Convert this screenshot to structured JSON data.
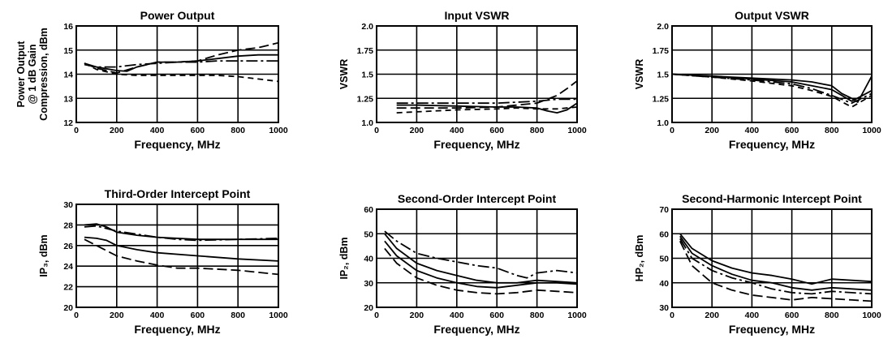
{
  "chart_data": [
    {
      "type": "line",
      "title": "Power Output",
      "xlabel": "Frequency, MHz",
      "ylabel_lines": [
        "Power Output",
        "@ 1 dB Gain",
        "Compression, dBm"
      ],
      "xlim": [
        0,
        1000
      ],
      "ylim": [
        12,
        16
      ],
      "xticks": [
        "0",
        "200",
        "400",
        "600",
        "800",
        "1000"
      ],
      "yticks": [
        "12",
        "13",
        "14",
        "15",
        "16"
      ],
      "series": [
        {
          "style": "solid",
          "x": [
            40,
            100,
            200,
            250,
            300,
            400,
            500,
            600,
            700,
            800,
            900,
            1000
          ],
          "y": [
            14.45,
            14.3,
            14.15,
            14.12,
            14.3,
            14.5,
            14.5,
            14.55,
            14.65,
            14.75,
            14.8,
            14.8
          ]
        },
        {
          "style": "dashdot",
          "x": [
            40,
            100,
            200,
            300,
            400,
            500,
            600,
            700,
            800,
            900,
            1000
          ],
          "y": [
            14.4,
            14.3,
            14.3,
            14.4,
            14.45,
            14.5,
            14.5,
            14.55,
            14.55,
            14.55,
            14.55
          ]
        },
        {
          "style": "longdash",
          "x": [
            40,
            100,
            200,
            300,
            400,
            500,
            600,
            700,
            800,
            900,
            1000
          ],
          "y": [
            14.45,
            14.25,
            14.05,
            14.3,
            14.5,
            14.5,
            14.55,
            14.8,
            15.0,
            15.1,
            15.3
          ]
        },
        {
          "style": "dashed",
          "x": [
            40,
            100,
            200,
            300,
            400,
            500,
            600,
            700,
            800,
            900,
            1000
          ],
          "y": [
            14.45,
            14.2,
            14.0,
            13.95,
            13.95,
            13.95,
            13.95,
            13.95,
            13.9,
            13.8,
            13.7
          ]
        }
      ]
    },
    {
      "type": "line",
      "title": "Input VSWR",
      "xlabel": "Frequency, MHz",
      "ylabel_lines": [
        "VSWR"
      ],
      "xlim": [
        0,
        1000
      ],
      "ylim": [
        1.0,
        2.0
      ],
      "xticks": [
        "0",
        "200",
        "400",
        "600",
        "800",
        "1000"
      ],
      "yticks": [
        "1.0",
        "1.25",
        "1.5",
        "1.75",
        "2.0"
      ],
      "series": [
        {
          "style": "solid",
          "x": [
            100,
            200,
            400,
            600,
            700,
            800,
            850,
            900,
            950,
            1000
          ],
          "y": [
            1.18,
            1.18,
            1.17,
            1.16,
            1.16,
            1.15,
            1.12,
            1.1,
            1.13,
            1.2
          ]
        },
        {
          "style": "dashdot",
          "x": [
            100,
            200,
            400,
            600,
            700,
            800,
            900,
            1000
          ],
          "y": [
            1.2,
            1.2,
            1.2,
            1.2,
            1.21,
            1.22,
            1.24,
            1.24
          ]
        },
        {
          "style": "longdash",
          "x": [
            100,
            200,
            400,
            600,
            700,
            800,
            900,
            950,
            1000
          ],
          "y": [
            1.15,
            1.15,
            1.15,
            1.16,
            1.18,
            1.2,
            1.28,
            1.35,
            1.43
          ]
        },
        {
          "style": "dashed",
          "x": [
            100,
            200,
            400,
            600,
            700,
            800,
            900,
            1000
          ],
          "y": [
            1.1,
            1.11,
            1.13,
            1.14,
            1.15,
            1.14,
            1.14,
            1.16
          ]
        }
      ]
    },
    {
      "type": "line",
      "title": "Output VSWR",
      "xlabel": "Frequency, MHz",
      "ylabel_lines": [
        "VSWR"
      ],
      "xlim": [
        0,
        1000
      ],
      "ylim": [
        1.0,
        2.0
      ],
      "xticks": [
        "0",
        "200",
        "400",
        "600",
        "800",
        "1000"
      ],
      "yticks": [
        "1.0",
        "1.25",
        "1.5",
        "1.75",
        "2.0"
      ],
      "series": [
        {
          "style": "solid",
          "x": [
            0,
            200,
            400,
            600,
            700,
            800,
            850,
            900,
            930,
            1000
          ],
          "y": [
            1.5,
            1.48,
            1.46,
            1.44,
            1.42,
            1.38,
            1.3,
            1.25,
            1.21,
            1.48
          ]
        },
        {
          "style": "solid",
          "x": [
            0,
            200,
            400,
            600,
            700,
            800,
            900,
            1000
          ],
          "y": [
            1.5,
            1.48,
            1.45,
            1.42,
            1.38,
            1.34,
            1.22,
            1.33
          ]
        },
        {
          "style": "dashdot",
          "x": [
            0,
            200,
            400,
            600,
            700,
            800,
            900,
            1000
          ],
          "y": [
            1.5,
            1.47,
            1.44,
            1.4,
            1.35,
            1.28,
            1.2,
            1.3
          ]
        },
        {
          "style": "dashed",
          "x": [
            0,
            200,
            400,
            600,
            700,
            800,
            900,
            1000
          ],
          "y": [
            1.5,
            1.47,
            1.43,
            1.38,
            1.33,
            1.27,
            1.16,
            1.28
          ]
        }
      ]
    },
    {
      "type": "line",
      "title": "Third-Order Intercept Point",
      "xlabel": "Frequency, MHz",
      "ylabel_lines": [
        "IP₃, dBm"
      ],
      "xlim": [
        0,
        1000
      ],
      "ylim": [
        20,
        30
      ],
      "xticks": [
        "0",
        "200",
        "400",
        "600",
        "800",
        "1000"
      ],
      "yticks": [
        "20",
        "22",
        "24",
        "26",
        "28",
        "30"
      ],
      "series": [
        {
          "style": "solid",
          "x": [
            40,
            100,
            150,
            200,
            300,
            400,
            600,
            800,
            1000
          ],
          "y": [
            28.0,
            28.1,
            27.8,
            27.3,
            27.0,
            26.8,
            26.6,
            26.6,
            26.6
          ]
        },
        {
          "style": "dashdot",
          "x": [
            40,
            100,
            200,
            300,
            400,
            500,
            600,
            800,
            1000
          ],
          "y": [
            27.8,
            27.9,
            27.4,
            27.1,
            26.8,
            26.6,
            26.5,
            26.6,
            26.7
          ]
        },
        {
          "style": "solid",
          "x": [
            40,
            100,
            150,
            200,
            300,
            400,
            600,
            800,
            1000
          ],
          "y": [
            26.8,
            26.7,
            26.5,
            26.0,
            25.6,
            25.3,
            25.0,
            24.7,
            24.5
          ]
        },
        {
          "style": "longdash",
          "x": [
            40,
            100,
            200,
            300,
            400,
            500,
            600,
            800,
            1000
          ],
          "y": [
            26.6,
            26.0,
            25.0,
            24.5,
            24.1,
            23.8,
            23.8,
            23.6,
            23.2
          ]
        }
      ]
    },
    {
      "type": "line",
      "title": "Second-Order Intercept Point",
      "xlabel": "Frequency, MHz",
      "ylabel_lines": [
        "IP₂, dBm"
      ],
      "xlim": [
        0,
        1000
      ],
      "ylim": [
        20,
        60
      ],
      "xticks": [
        "0",
        "200",
        "400",
        "600",
        "800",
        "1000"
      ],
      "yticks": [
        "20",
        "30",
        "40",
        "50",
        "60"
      ],
      "series": [
        {
          "style": "dashdot",
          "x": [
            40,
            100,
            200,
            300,
            400,
            500,
            600,
            700,
            750,
            800,
            900,
            1000
          ],
          "y": [
            51,
            47,
            42,
            40,
            38.5,
            37,
            36,
            33,
            32,
            34,
            35,
            34
          ]
        },
        {
          "style": "solid",
          "x": [
            40,
            100,
            200,
            300,
            400,
            500,
            600,
            700,
            800,
            900,
            1000
          ],
          "y": [
            50,
            44,
            38,
            35,
            33,
            31,
            30,
            30,
            31,
            30.5,
            30
          ]
        },
        {
          "style": "solid",
          "x": [
            40,
            100,
            200,
            300,
            400,
            500,
            600,
            700,
            800,
            900,
            1000
          ],
          "y": [
            47,
            41,
            35,
            32,
            30,
            28.5,
            28,
            29,
            30,
            30,
            29.5
          ]
        },
        {
          "style": "longdash",
          "x": [
            40,
            100,
            200,
            300,
            400,
            500,
            600,
            700,
            800,
            900,
            1000
          ],
          "y": [
            44,
            38,
            32,
            29,
            27,
            26,
            25.5,
            26,
            27,
            26.5,
            26
          ]
        }
      ]
    },
    {
      "type": "line",
      "title": "Second-Harmonic Intercept Point",
      "xlabel": "Frequency, MHz",
      "ylabel_lines": [
        "HP₂, dBm"
      ],
      "xlim": [
        0,
        1000
      ],
      "ylim": [
        30,
        70
      ],
      "xticks": [
        "0",
        "200",
        "400",
        "600",
        "800",
        "1000"
      ],
      "yticks": [
        "30",
        "40",
        "50",
        "60",
        "70"
      ],
      "series": [
        {
          "style": "solid",
          "x": [
            40,
            100,
            200,
            300,
            400,
            500,
            600,
            700,
            800,
            900,
            1000
          ],
          "y": [
            60,
            54,
            49,
            46,
            44,
            43,
            41.5,
            39.5,
            41.5,
            41,
            40.5
          ]
        },
        {
          "style": "solid",
          "x": [
            40,
            100,
            200,
            300,
            400,
            500,
            600,
            700,
            800,
            900,
            1000
          ],
          "y": [
            59,
            52,
            47,
            43.5,
            41,
            40,
            38,
            37,
            38,
            37.5,
            37
          ]
        },
        {
          "style": "dashdot",
          "x": [
            40,
            100,
            200,
            300,
            400,
            500,
            600,
            700,
            800,
            900,
            1000
          ],
          "y": [
            58,
            50,
            45,
            42,
            40,
            37.5,
            36,
            35.5,
            36.5,
            36,
            35.5
          ]
        },
        {
          "style": "longdash",
          "x": [
            40,
            100,
            200,
            300,
            400,
            500,
            600,
            700,
            800,
            900,
            1000
          ],
          "y": [
            57,
            47,
            40,
            37,
            35,
            34,
            33,
            34,
            33.5,
            33,
            32.5
          ]
        }
      ]
    }
  ]
}
